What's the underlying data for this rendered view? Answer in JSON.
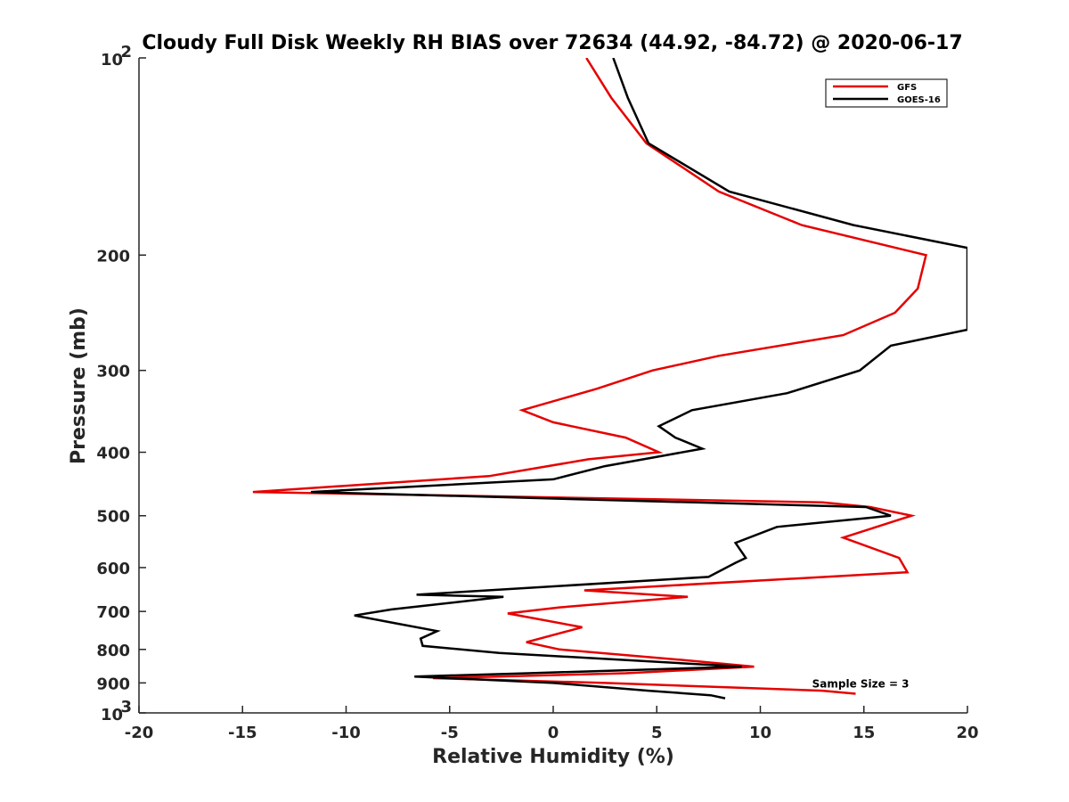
{
  "chart_data": {
    "type": "line",
    "title": "Cloudy Full Disk Weekly RH BIAS over 72634 (44.92, -84.72) @ 2020-06-17",
    "xlabel": "Relative Humidity (%)",
    "ylabel": "Pressure (mb)",
    "xlim": [
      -20,
      20
    ],
    "ylim": [
      100,
      1000
    ],
    "y_scale": "log",
    "y_reversed": true,
    "grid": false,
    "legend_position": "top-right",
    "x_ticks": [
      -20,
      -15,
      -10,
      -5,
      0,
      5,
      10,
      15,
      20
    ],
    "x_tick_labels": [
      "-20",
      "-15",
      "-10",
      "-5",
      "0",
      "5",
      "10",
      "15",
      "20"
    ],
    "y_ticks": [
      {
        "value": 100,
        "base": "10",
        "exp": "2"
      },
      {
        "value": 200,
        "label": "200"
      },
      {
        "value": 300,
        "label": "300"
      },
      {
        "value": 400,
        "label": "400"
      },
      {
        "value": 500,
        "label": "500"
      },
      {
        "value": 600,
        "label": "600"
      },
      {
        "value": 700,
        "label": "700"
      },
      {
        "value": 800,
        "label": "800"
      },
      {
        "value": 900,
        "label": "900"
      },
      {
        "value": 1000,
        "base": "10",
        "exp": "3"
      }
    ],
    "series": [
      {
        "name": "GFS",
        "color": "#e60000",
        "points": [
          [
            1.6,
            100
          ],
          [
            2.8,
            115
          ],
          [
            4.5,
            135
          ],
          [
            8,
            160
          ],
          [
            12,
            180
          ],
          [
            18,
            200
          ],
          [
            17.6,
            225
          ],
          [
            16.5,
            245
          ],
          [
            14,
            265
          ],
          [
            8,
            285
          ],
          [
            4.8,
            300
          ],
          [
            2.1,
            320
          ],
          [
            -1.5,
            345
          ],
          [
            0,
            360
          ],
          [
            3.5,
            380
          ],
          [
            5.1,
            400
          ],
          [
            1.7,
            410
          ],
          [
            -3.1,
            435
          ],
          [
            -14.5,
            460
          ],
          [
            13,
            477
          ],
          [
            15.3,
            485
          ],
          [
            17.3,
            500
          ],
          [
            14,
            540
          ],
          [
            16.7,
            580
          ],
          [
            17.1,
            610
          ],
          [
            1.5,
            650
          ],
          [
            6.5,
            665
          ],
          [
            0.3,
            690
          ],
          [
            -2.2,
            705
          ],
          [
            1.4,
            740
          ],
          [
            -1.3,
            780
          ],
          [
            0.3,
            800
          ],
          [
            6.2,
            830
          ],
          [
            9.7,
            850
          ],
          [
            3.5,
            870
          ],
          [
            -5.8,
            885
          ],
          [
            2.5,
            900
          ],
          [
            13,
            925
          ],
          [
            14.6,
            935
          ]
        ]
      },
      {
        "name": "GOES-16",
        "color": "#000000",
        "points": [
          [
            2.9,
            100
          ],
          [
            3.6,
            115
          ],
          [
            4.6,
            135
          ],
          [
            8.5,
            160
          ],
          [
            14.5,
            180
          ],
          [
            20,
            195
          ],
          [
            20,
            260
          ],
          [
            16.3,
            275
          ],
          [
            14.8,
            300
          ],
          [
            11.3,
            325
          ],
          [
            6.7,
            345
          ],
          [
            5.1,
            365
          ],
          [
            5.9,
            380
          ],
          [
            7.2,
            395
          ],
          [
            2.5,
            420
          ],
          [
            0,
            440
          ],
          [
            -11.7,
            460
          ],
          [
            15.1,
            485
          ],
          [
            16.3,
            500
          ],
          [
            10.8,
            520
          ],
          [
            8.8,
            550
          ],
          [
            9.3,
            580
          ],
          [
            8.8,
            590
          ],
          [
            7.5,
            620
          ],
          [
            -6.6,
            660
          ],
          [
            -2.4,
            665
          ],
          [
            -7.8,
            695
          ],
          [
            -9.6,
            710
          ],
          [
            -7.6,
            730
          ],
          [
            -5.6,
            750
          ],
          [
            -6.4,
            770
          ],
          [
            -6.3,
            790
          ],
          [
            -2.6,
            810
          ],
          [
            9.1,
            850
          ],
          [
            -1.2,
            870
          ],
          [
            -6.7,
            880
          ],
          [
            0,
            900
          ],
          [
            4.6,
            925
          ],
          [
            7.6,
            940
          ],
          [
            8.3,
            950
          ]
        ]
      }
    ],
    "annotations": [
      {
        "text": "Sample Size = 3",
        "x": 12.5,
        "y": 900
      }
    ]
  }
}
